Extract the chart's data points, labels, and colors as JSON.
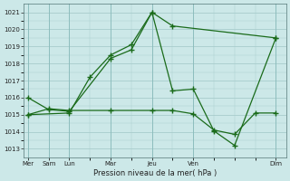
{
  "background_color": "#cce8e8",
  "grid_color": "#a8cccc",
  "line_color": "#1a6b1a",
  "xlabel": "Pression niveau de la mer( hPa )",
  "ylim": [
    1012.5,
    1021.5
  ],
  "yticks": [
    1013,
    1014,
    1015,
    1016,
    1017,
    1018,
    1019,
    1020,
    1021
  ],
  "xtick_positions": [
    0,
    1,
    2,
    4,
    6,
    8,
    12
  ],
  "xtick_labels": [
    "Mer",
    "Sam",
    "Lun",
    "Mar",
    "Jeu",
    "Ven",
    "Dim"
  ],
  "xlim": [
    -0.2,
    12.5
  ],
  "series": [
    {
      "x": [
        0,
        1,
        2,
        4,
        5,
        6,
        7,
        12
      ],
      "y": [
        1016.0,
        1015.3,
        1015.2,
        1018.3,
        1018.8,
        1021.0,
        1020.2,
        1019.5
      ]
    },
    {
      "x": [
        0,
        2,
        3,
        4,
        5,
        6,
        7,
        8,
        9,
        10,
        12
      ],
      "y": [
        1015.0,
        1015.1,
        1017.2,
        1018.5,
        1019.1,
        1021.0,
        1016.4,
        1016.5,
        1014.05,
        1013.2,
        1019.5
      ]
    },
    {
      "x": [
        0,
        1,
        2,
        4,
        6,
        7,
        8,
        9,
        10,
        11,
        12
      ],
      "y": [
        1015.0,
        1015.35,
        1015.25,
        1015.25,
        1015.25,
        1015.25,
        1015.05,
        1014.1,
        1013.85,
        1015.1,
        1015.1
      ]
    }
  ]
}
